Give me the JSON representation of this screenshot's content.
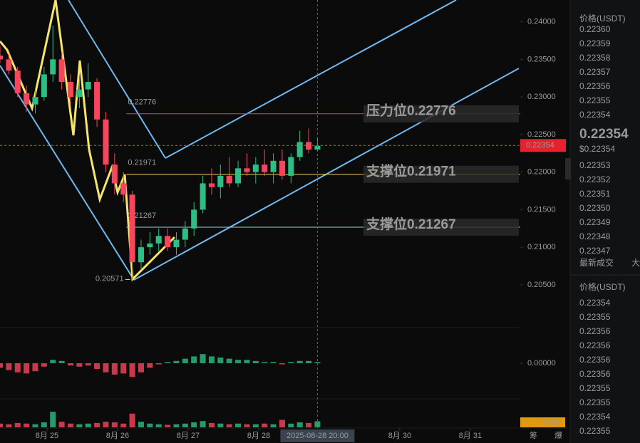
{
  "chart_data": {
    "type": "candlestick",
    "x": [
      -16,
      -13,
      -10,
      -7,
      -4,
      -1,
      2,
      5,
      8,
      11,
      14,
      17,
      20,
      23,
      26,
      29,
      32,
      35,
      38,
      41,
      44,
      47,
      50,
      53,
      56,
      59,
      62,
      65,
      68,
      71,
      74,
      77,
      80,
      83,
      86,
      89,
      92
    ],
    "open": [
      0.2355,
      0.235,
      0.2335,
      0.2305,
      0.229,
      0.23,
      0.233,
      0.235,
      0.232,
      0.23,
      0.231,
      0.232,
      0.227,
      0.221,
      0.2185,
      0.217,
      0.208,
      0.21,
      0.2105,
      0.2115,
      0.21,
      0.211,
      0.2125,
      0.215,
      0.2185,
      0.218,
      0.2195,
      0.2185,
      0.2205,
      0.22,
      0.221,
      0.22,
      0.2215,
      0.2195,
      0.222,
      0.224,
      0.223
    ],
    "high": [
      0.2368,
      0.2358,
      0.234,
      0.2315,
      0.231,
      0.234,
      0.2395,
      0.236,
      0.233,
      0.2325,
      0.2345,
      0.2325,
      0.228,
      0.2225,
      0.22,
      0.2175,
      0.211,
      0.212,
      0.2125,
      0.2125,
      0.212,
      0.2135,
      0.216,
      0.2195,
      0.2205,
      0.221,
      0.222,
      0.2215,
      0.2225,
      0.222,
      0.223,
      0.2225,
      0.223,
      0.2225,
      0.2255,
      0.2258,
      0.2245
    ],
    "low": [
      0.2345,
      0.233,
      0.23,
      0.228,
      0.2278,
      0.2295,
      0.232,
      0.231,
      0.229,
      0.2285,
      0.23,
      0.226,
      0.22,
      0.217,
      0.216,
      0.2057,
      0.207,
      0.209,
      0.2095,
      0.2095,
      0.209,
      0.21,
      0.2115,
      0.2145,
      0.217,
      0.2165,
      0.218,
      0.218,
      0.2195,
      0.2185,
      0.2195,
      0.2185,
      0.219,
      0.2185,
      0.2215,
      0.2225,
      0.2228
    ],
    "close": [
      0.235,
      0.2335,
      0.2305,
      0.229,
      0.23,
      0.233,
      0.235,
      0.232,
      0.23,
      0.231,
      0.232,
      0.227,
      0.221,
      0.2185,
      0.217,
      0.208,
      0.21,
      0.2105,
      0.2115,
      0.21,
      0.211,
      0.2125,
      0.215,
      0.2185,
      0.218,
      0.2195,
      0.2185,
      0.2205,
      0.22,
      0.221,
      0.22,
      0.2215,
      0.2195,
      0.222,
      0.224,
      0.223,
      0.2235
    ],
    "up_color": "#2ebd85",
    "down_color": "#f6465d",
    "xlim": [
      -16,
      161
    ],
    "xticks": [
      {
        "value": 0,
        "label": "8月 25"
      },
      {
        "value": 24,
        "label": "8月 26"
      },
      {
        "value": 48,
        "label": "8月 27"
      },
      {
        "value": 72,
        "label": "8月 28"
      },
      {
        "value": 120,
        "label": "8月 30"
      },
      {
        "value": 144,
        "label": "8月 31"
      }
    ],
    "crosshair": {
      "x": 92,
      "label": "2025-08-28 20:00"
    },
    "ylim": [
      0.1993,
      0.2429
    ],
    "yticks": [
      {
        "value": 0.24,
        "label": "0.24000"
      },
      {
        "value": 0.235,
        "label": "0.23500"
      },
      {
        "value": 0.23,
        "label": "0.23000"
      },
      {
        "value": 0.225,
        "label": "0.22500"
      },
      {
        "value": 0.22,
        "label": "0.22000"
      },
      {
        "value": 0.215,
        "label": "0.21500"
      },
      {
        "value": 0.21,
        "label": "0.21000"
      },
      {
        "value": 0.205,
        "label": "0.20500"
      }
    ],
    "grid": false,
    "last_price": 0.22354,
    "levels": [
      {
        "value": 0.22776,
        "text": "压力位0.22776",
        "color": "#e04848",
        "text_color": "#f58fc0"
      },
      {
        "value": 0.21971,
        "text": "支撑位0.21971",
        "color": "#e8d44d",
        "text_color": "#f7e463"
      },
      {
        "value": 0.21267,
        "text": "支撑位0.21267",
        "color": "#7fe0e0",
        "text_color": "#8fd46a"
      }
    ],
    "low_marker": {
      "x": 29,
      "value": 0.20571
    },
    "macd": {
      "values": [
        -0.0004,
        -0.0006,
        -0.0008,
        -0.0009,
        -0.0007,
        -0.0003,
        0.0003,
        0.0002,
        -0.0002,
        -0.0003,
        -0.0002,
        -0.0005,
        -0.0008,
        -0.001,
        -0.0009,
        -0.0012,
        -0.0008,
        -0.0004,
        -0.0001,
        0.0001,
        0.0002,
        0.0004,
        0.0006,
        0.0008,
        0.0006,
        0.0005,
        0.0004,
        0.0003,
        0.0003,
        0.0002,
        0.0001,
        0.0001,
        -0.0001,
        0.0001,
        0.0002,
        0.0002,
        0.0001
      ],
      "ylim": [
        -0.0025,
        0.0025
      ],
      "yticks": [
        {
          "value": 0,
          "label": "0.00000"
        }
      ]
    },
    "volume": {
      "values": [
        6000000,
        5000000,
        7000000,
        6000000,
        5000000,
        8000000,
        25000000,
        9000000,
        6000000,
        5000000,
        6000000,
        7000000,
        9000000,
        8000000,
        6000000,
        22000000,
        9000000,
        6000000,
        5000000,
        4000000,
        5000000,
        6000000,
        8000000,
        10000000,
        7000000,
        6000000,
        5000000,
        6000000,
        5000000,
        5000000,
        6000000,
        5000000,
        12000000,
        6000000,
        8000000,
        7000000,
        9800000
      ],
      "ylim": [
        0,
        40000000
      ],
      "last": {
        "value": 9800000,
        "label": "9.8M"
      }
    },
    "toolbar": [
      "筹",
      "爆"
    ]
  },
  "order_book": {
    "header": "价格(USDT)",
    "asks": [
      "0.22360",
      "0.22359",
      "0.22358",
      "0.22357",
      "0.22356",
      "0.22355",
      "0.22354"
    ],
    "mid": "0.22354",
    "mid_usd": "$0.22354",
    "bids": [
      "0.22353",
      "0.22352",
      "0.22351",
      "0.22350",
      "0.22349",
      "0.22348",
      "0.22347"
    ]
  },
  "trades": {
    "tabs": [
      "最新成交",
      "大"
    ],
    "header": "价格(USDT)",
    "rows": [
      {
        "price": "0.22354",
        "side": "sell"
      },
      {
        "price": "0.22355",
        "side": "sell"
      },
      {
        "price": "0.22356",
        "side": "buy"
      },
      {
        "price": "0.22356",
        "side": "buy"
      },
      {
        "price": "0.22356",
        "side": "buy"
      },
      {
        "price": "0.22356",
        "side": "buy"
      },
      {
        "price": "0.22355",
        "side": "sell"
      },
      {
        "price": "0.22355",
        "side": "buy"
      },
      {
        "price": "0.22354",
        "side": "sell"
      },
      {
        "price": "0.22355",
        "side": "buy"
      }
    ]
  }
}
